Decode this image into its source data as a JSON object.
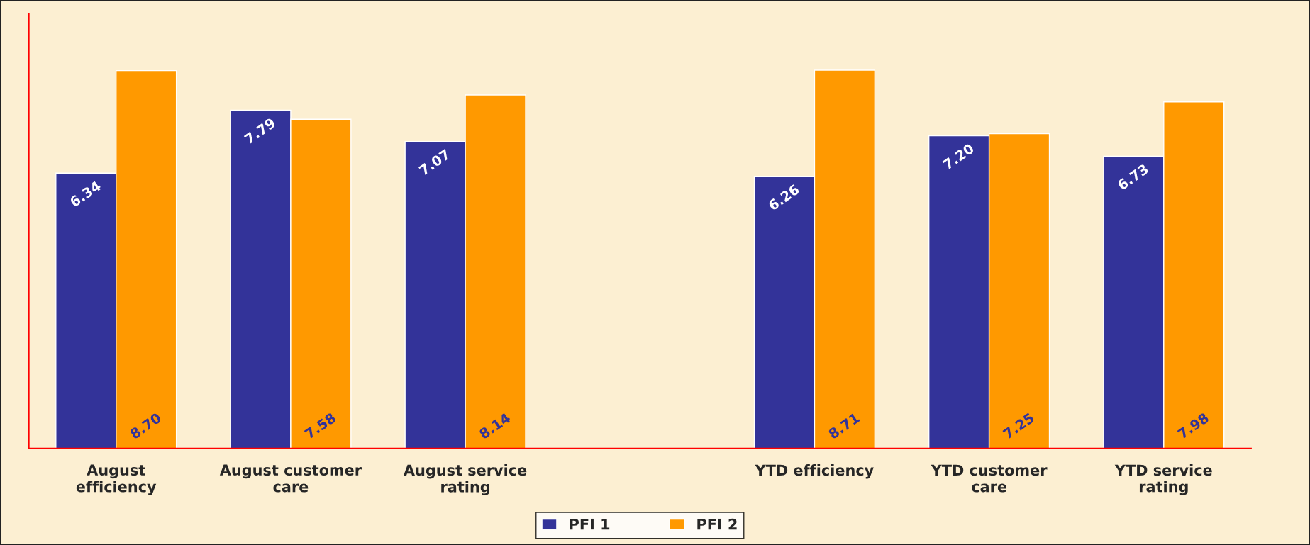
{
  "chart_data": {
    "type": "bar",
    "categories": [
      "August efficiency",
      "August customer care",
      "August service rating",
      null,
      "YTD efficiency",
      "YTD customer care",
      "YTD service rating"
    ],
    "series": [
      {
        "name": "PFI 1",
        "color": "#333399",
        "values": [
          6.34,
          7.79,
          7.07,
          null,
          6.26,
          7.2,
          6.73
        ],
        "value_labels": [
          "6.34",
          "7.79",
          "7.07",
          null,
          "6.26",
          "7.20",
          "6.73"
        ]
      },
      {
        "name": "PFI 2",
        "color": "#ff9900",
        "values": [
          8.7,
          7.58,
          8.14,
          null,
          8.71,
          7.25,
          7.98
        ],
        "value_labels": [
          "8.70",
          "7.58",
          "8.14",
          null,
          "8.71",
          "7.25",
          "7.98"
        ]
      }
    ],
    "ylim": [
      0,
      10
    ],
    "tick_labels": "x",
    "legend": "bottom",
    "grid": false
  }
}
